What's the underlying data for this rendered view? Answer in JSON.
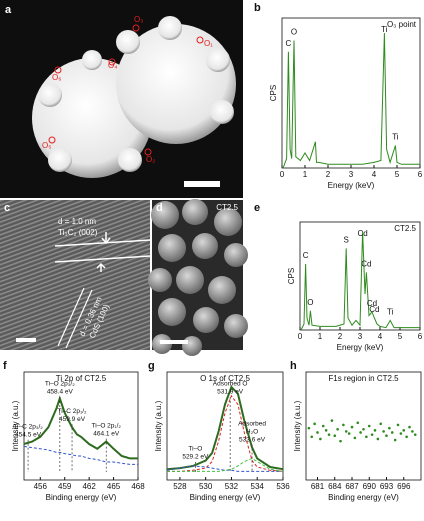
{
  "images": {
    "a": {
      "letter": "a",
      "points": [
        "O₃",
        "O₁",
        "O₄",
        "O₆",
        "O₅",
        "O₂"
      ]
    },
    "c": {
      "letter": "c",
      "annotations": [
        "d = 1.0 nm",
        "Ti₃C₂ (002)",
        "d = 0.36 nm",
        "CdS (100)"
      ]
    },
    "d": {
      "letter": "d",
      "label": "CT2.5"
    }
  },
  "chart_data": [
    {
      "type": "line",
      "panel": "b",
      "title": "O₃ point",
      "xlabel": "Energy (keV)",
      "ylabel": "CPS",
      "x": [
        0.05,
        0.2,
        0.28,
        0.35,
        0.42,
        0.52,
        0.6,
        0.8,
        1.0,
        1.2,
        1.45,
        1.5,
        1.6,
        2.0,
        2.5,
        3.0,
        3.5,
        4.0,
        4.3,
        4.45,
        4.55,
        4.7,
        4.93,
        5.0,
        5.2,
        5.5,
        6.0
      ],
      "series": [
        {
          "color": "#2e8b1e",
          "values": [
            0,
            5,
            62,
            10,
            5,
            68,
            6,
            4,
            8,
            4,
            14,
            3,
            3,
            2,
            2,
            2,
            2,
            3,
            4,
            72,
            10,
            3,
            12,
            3,
            2,
            2,
            2
          ]
        }
      ],
      "xlim": [
        0,
        6
      ],
      "xticks": [
        0,
        1,
        2,
        3,
        4,
        5,
        6
      ],
      "ylim": [
        0,
        80
      ],
      "annotations": [
        {
          "text": [
            "C"
          ],
          "x": 0.28
        },
        {
          "text": [
            "O"
          ],
          "x": 0.52
        },
        {
          "text": [
            "Ti"
          ],
          "x": 4.45
        },
        {
          "text": [
            "Ti"
          ],
          "x": 4.93
        }
      ]
    },
    {
      "type": "line",
      "panel": "e",
      "title": "CT2.5",
      "xlabel": "Energy (keV)",
      "ylabel": "CPS",
      "x": [
        0.05,
        0.2,
        0.28,
        0.35,
        0.45,
        0.52,
        0.6,
        1.0,
        1.5,
        1.8,
        2.2,
        2.31,
        2.4,
        2.6,
        2.8,
        3.0,
        3.13,
        3.25,
        3.32,
        3.45,
        3.6,
        3.72,
        3.85,
        4.0,
        4.3,
        4.51,
        4.7,
        5.0,
        6.0
      ],
      "series": [
        {
          "color": "#2e8b1e",
          "values": [
            0,
            5,
            55,
            10,
            4,
            16,
            4,
            3,
            3,
            3,
            5,
            68,
            10,
            4,
            8,
            4,
            82,
            30,
            48,
            12,
            15,
            10,
            5,
            3,
            2,
            8,
            2,
            2,
            2
          ]
        }
      ],
      "xlim": [
        0,
        6
      ],
      "xticks": [
        0,
        1,
        2,
        3,
        4,
        5,
        6
      ],
      "ylim": [
        0,
        90
      ],
      "annotations": [
        {
          "text": [
            "C"
          ],
          "x": 0.28
        },
        {
          "text": [
            "O"
          ],
          "x": 0.52
        },
        {
          "text": [
            "S"
          ],
          "x": 2.31
        },
        {
          "text": [
            "Cd"
          ],
          "x": 3.13
        },
        {
          "text": [
            "Cd"
          ],
          "x": 3.32
        },
        {
          "text": [
            "Cd"
          ],
          "x": 3.6
        },
        {
          "text": [
            "Cd"
          ],
          "x": 3.72
        },
        {
          "text": [
            "Ti"
          ],
          "x": 4.51
        }
      ]
    },
    {
      "type": "line",
      "panel": "f",
      "title": "Ti 2p of CT2.5",
      "xlabel": "Binding energy (eV)",
      "ylabel": "Intensity (a.u.)",
      "drop_lines": true,
      "x": [
        454,
        455,
        456,
        457,
        458,
        458.4,
        459,
        459.9,
        460.5,
        461,
        462,
        463,
        464.1,
        465,
        466,
        467,
        468
      ],
      "series": [
        {
          "color": "#2e6b1e",
          "width": 2,
          "values": [
            50,
            52,
            56,
            64,
            80,
            88,
            76,
            64,
            58,
            56,
            50,
            46,
            52,
            46,
            40,
            38,
            38
          ]
        },
        {
          "color": "#3355cc",
          "width": 1,
          "dashed": true,
          "values": [
            48,
            47,
            46,
            45,
            43,
            43,
            42,
            41,
            40,
            40,
            38,
            37,
            35,
            35,
            34,
            33,
            33
          ]
        }
      ],
      "xlim": [
        454,
        468
      ],
      "xticks": [
        456,
        459,
        462,
        465,
        468
      ],
      "ylim": [
        20,
        110
      ],
      "annotations": [
        {
          "text": [
            "Ti–C 2p₃/₂",
            "454.5 eV"
          ],
          "x": 454.5
        },
        {
          "text": [
            "Ti–O 2p₃/₂",
            "458.4 eV"
          ],
          "x": 458.4
        },
        {
          "text": [
            "Ti–C 2p₁/₂",
            "459.9 eV"
          ],
          "x": 459.9
        },
        {
          "text": [
            "Ti–O 2p₁/₂",
            "464.1 eV"
          ],
          "x": 464.1
        }
      ]
    },
    {
      "type": "line",
      "panel": "g",
      "title": "O 1s of CT2.5",
      "xlabel": "Binding energy (eV)",
      "ylabel": "Intensity (a.u.)",
      "drop_lines": true,
      "x": [
        527,
        528,
        529,
        530,
        530.5,
        531,
        531.5,
        532,
        532.5,
        533,
        533.6,
        534,
        535,
        536
      ],
      "series": [
        {
          "color": "#2e6b1e",
          "width": 2,
          "values": [
            10,
            11,
            13,
            18,
            25,
            45,
            70,
            86,
            80,
            55,
            30,
            20,
            12,
            10
          ]
        },
        {
          "color": "#e02020",
          "width": 1,
          "dashed": true,
          "values": [
            8,
            8,
            9,
            11,
            17,
            36,
            62,
            78,
            70,
            44,
            18,
            12,
            9,
            8
          ]
        },
        {
          "color": "#3355cc",
          "width": 1,
          "dashed": true,
          "values": [
            9,
            11,
            13,
            12,
            11,
            10,
            9,
            9,
            8,
            8,
            8,
            8,
            8,
            8
          ]
        },
        {
          "color": "#40c040",
          "width": 1,
          "dashed": true,
          "values": [
            8,
            8,
            8,
            8,
            8,
            8,
            9,
            10,
            13,
            17,
            20,
            17,
            10,
            8
          ]
        }
      ],
      "xlim": [
        527,
        536
      ],
      "xticks": [
        528,
        530,
        532,
        534,
        536
      ],
      "ylim": [
        0,
        100
      ],
      "annotations": [
        {
          "text": [
            "Ti–O",
            "529.2 eV"
          ],
          "x": 529.2
        },
        {
          "text": [
            "Adsorbed O",
            "531.9 eV"
          ],
          "x": 531.9
        },
        {
          "text": [
            "Adsorbed",
            "H₂O",
            "533.6 eV"
          ],
          "x": 533.6
        }
      ]
    },
    {
      "type": "scatter",
      "panel": "h",
      "title": "F1s region in CT2.5",
      "xlabel": "Binding energy (eV)",
      "ylabel": "Intensity (a.u.)",
      "x": [
        679.5,
        680,
        680.5,
        681,
        681.5,
        682,
        682.5,
        683,
        683.5,
        684,
        684.5,
        685,
        685.5,
        686,
        686.5,
        687,
        687.5,
        688,
        688.5,
        689,
        689.5,
        690,
        690.5,
        691,
        691.5,
        692,
        692.5,
        693,
        693.5,
        694,
        694.5,
        695,
        695.5,
        696,
        696.5,
        697,
        697.5,
        698
      ],
      "series": [
        {
          "color": "#2e8b1e",
          "values": [
            48,
            40,
            52,
            44,
            38,
            50,
            46,
            42,
            55,
            41,
            47,
            36,
            51,
            45,
            43,
            49,
            39,
            53,
            44,
            47,
            40,
            50,
            42,
            46,
            38,
            52,
            45,
            41,
            48,
            44,
            37,
            51,
            43,
            46,
            40,
            49,
            45,
            42
          ]
        }
      ],
      "xlim": [
        679,
        699
      ],
      "xticks": [
        681,
        684,
        687,
        690,
        693,
        696
      ],
      "ylim": [
        0,
        100
      ]
    }
  ]
}
